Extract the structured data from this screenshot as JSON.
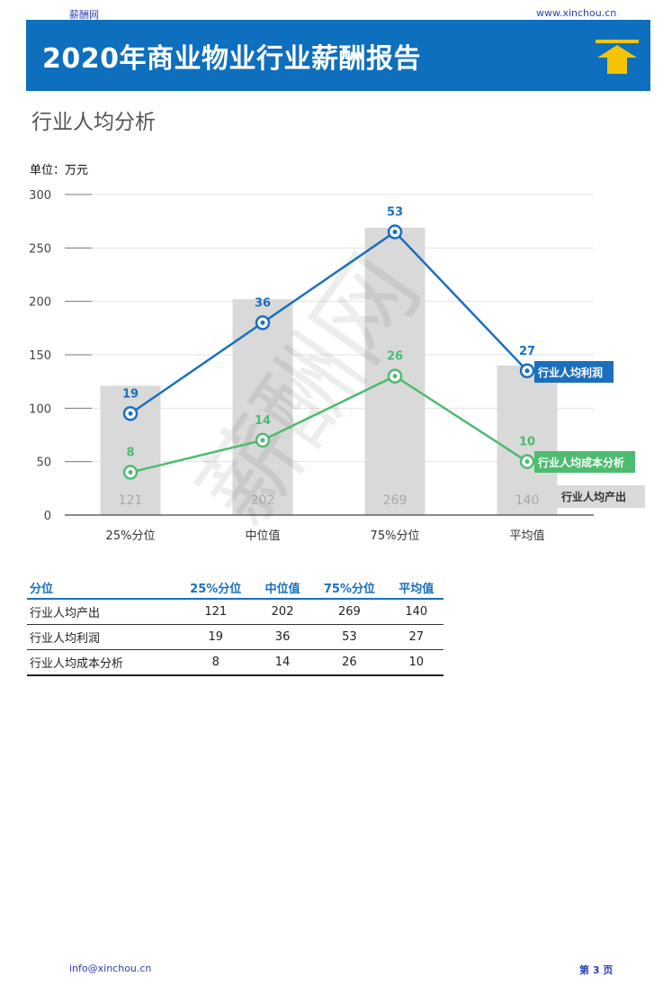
{
  "header": {
    "site_name": "薪酬网",
    "site_url": "www.xinchou.cn",
    "report_title": "2020年商业物业行业薪酬报告",
    "logo_icon": "up-arrow-icon"
  },
  "section": {
    "title": "行业人均分析",
    "unit_label": "单位：万元"
  },
  "watermark": "薪酬网",
  "colors": {
    "brand_blue": "#0d6fbd",
    "profit_line": "#1a6fbf",
    "cost_line": "#4cbc6f",
    "output_bar": "#d9d9d9",
    "logo_yellow": "#f5c400"
  },
  "chart_data": {
    "type": "bar",
    "categories": [
      "25%分位",
      "中位值",
      "75%分位",
      "平均值"
    ],
    "ylim": [
      0,
      300
    ],
    "yticks": [
      0,
      50,
      100,
      150,
      200,
      250,
      300
    ],
    "bars": {
      "name": "行业人均产出",
      "values": [
        121,
        202,
        269,
        140
      ],
      "labels": [
        "121",
        "202",
        "269",
        "140"
      ]
    },
    "lines": [
      {
        "name": "行业人均利润",
        "plot_values": [
          95,
          180,
          265,
          135
        ],
        "labels": [
          "19",
          "36",
          "53",
          "27"
        ]
      },
      {
        "name": "行业人均成本分析",
        "plot_values": [
          40,
          70,
          130,
          50
        ],
        "labels": [
          "8",
          "14",
          "26",
          "10"
        ]
      }
    ]
  },
  "table": {
    "headers": [
      "分位",
      "25%分位",
      "中位值",
      "75%分位",
      "平均值"
    ],
    "rows": [
      [
        "行业人均产出",
        "121",
        "202",
        "269",
        "140"
      ],
      [
        "行业人均利润",
        "19",
        "36",
        "53",
        "27"
      ],
      [
        "行业人均成本分析",
        "8",
        "14",
        "26",
        "10"
      ]
    ]
  },
  "footer": {
    "email": "info@xinchou.cn",
    "page": "第 3 页"
  }
}
